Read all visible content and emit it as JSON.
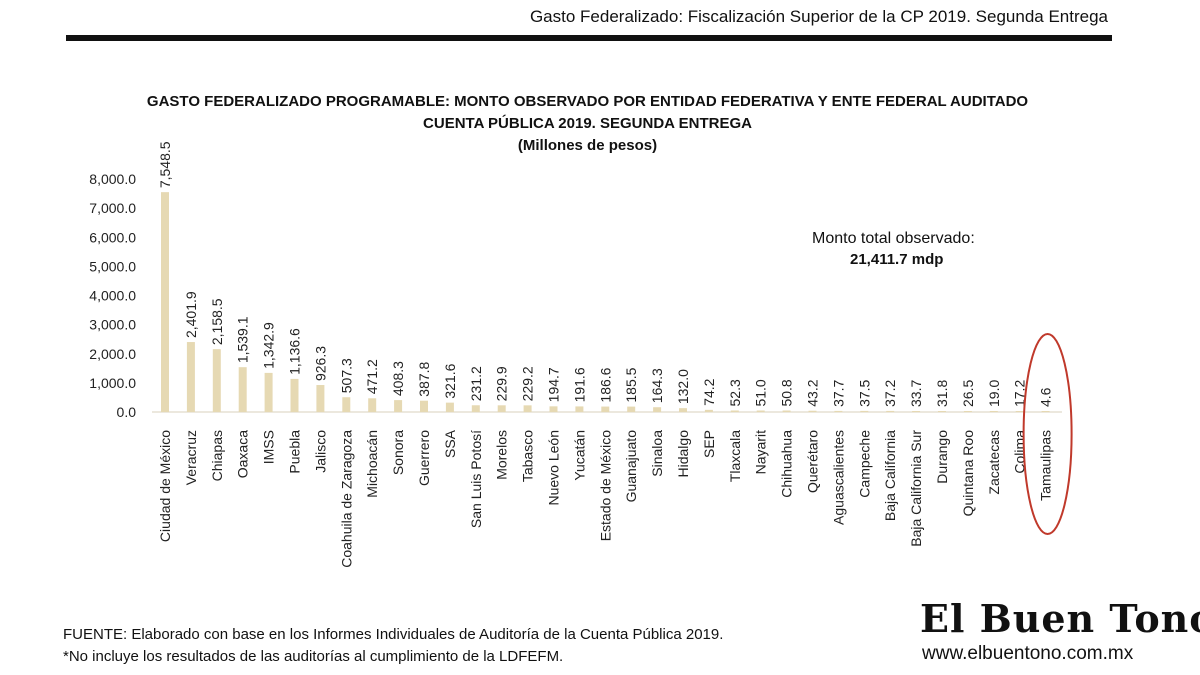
{
  "header": {
    "title": "Gasto Federalizado: Fiscalización Superior de la CP 2019. Segunda Entrega"
  },
  "chart_data": {
    "type": "bar",
    "title": "GASTO FEDERALIZADO PROGRAMABLE: MONTO OBSERVADO POR ENTIDAD FEDERATIVA Y ENTE FEDERAL AUDITADO",
    "subtitle": "CUENTA PÚBLICA 2019. SEGUNDA ENTREGA",
    "units": "(Millones de pesos)",
    "categories": [
      "Ciudad de México",
      "Veracruz",
      "Chiapas",
      "Oaxaca",
      "IMSS",
      "Puebla",
      "Jalisco",
      "Coahuila de Zaragoza",
      "Michoacán",
      "Sonora",
      "Guerrero",
      "SSA",
      "San Luis Potosí",
      "Morelos",
      "Tabasco",
      "Nuevo León",
      "Yucatán",
      "Estado de México",
      "Guanajuato",
      "Sinaloa",
      "Hidalgo",
      "SEP",
      "Tlaxcala",
      "Nayarit",
      "Chihuahua",
      "Querétaro",
      "Aguascalientes",
      "Campeche",
      "Baja California",
      "Baja California Sur",
      "Durango",
      "Quintana Roo",
      "Zacatecas",
      "Colima",
      "Tamaulipas"
    ],
    "values": [
      7548.5,
      2401.9,
      2158.5,
      1539.1,
      1342.9,
      1136.6,
      926.3,
      507.3,
      471.2,
      408.3,
      387.8,
      321.6,
      231.2,
      229.9,
      229.2,
      194.7,
      191.6,
      186.6,
      185.5,
      164.3,
      132.0,
      74.2,
      52.3,
      51.0,
      50.8,
      43.2,
      37.7,
      37.5,
      37.2,
      33.7,
      31.8,
      26.5,
      19.0,
      17.2,
      4.6
    ],
    "value_labels": [
      "7,548.5",
      "2,401.9",
      "2,158.5",
      "1,539.1",
      "1,342.9",
      "1,136.6",
      "926.3",
      "507.3",
      "471.2",
      "408.3",
      "387.8",
      "321.6",
      "231.2",
      "229.9",
      "229.2",
      "194.7",
      "191.6",
      "186.6",
      "185.5",
      "164.3",
      "132.0",
      "74.2",
      "52.3",
      "51.0",
      "50.8",
      "43.2",
      "37.7",
      "37.5",
      "37.2",
      "33.7",
      "31.8",
      "26.5",
      "19.0",
      "17.2",
      "4.6"
    ],
    "ytick_labels": [
      "0.0",
      "1,000.0",
      "2,000.0",
      "3,000.0",
      "4,000.0",
      "5,000.0",
      "6,000.0",
      "7,000.0",
      "8,000.0"
    ],
    "ylim": [
      0,
      8000
    ],
    "xlabel": "",
    "ylabel": "",
    "grid": false,
    "bar_color": "#e6d9b3",
    "highlight_category": "Tamaulipas",
    "highlight_color": "#c0392b",
    "annotation": {
      "label": "Monto total observado:",
      "value": "21,411.7 mdp"
    }
  },
  "footer": {
    "source": "FUENTE: Elaborado con base en los Informes Individuales de Auditoría de la Cuenta Pública 2019.",
    "note": "*No incluye los resultados de las auditorías al cumplimiento de la LDFEFM."
  },
  "logo": {
    "name": "El Buen Tono",
    "url": "www.elbuentono.com.mx"
  }
}
